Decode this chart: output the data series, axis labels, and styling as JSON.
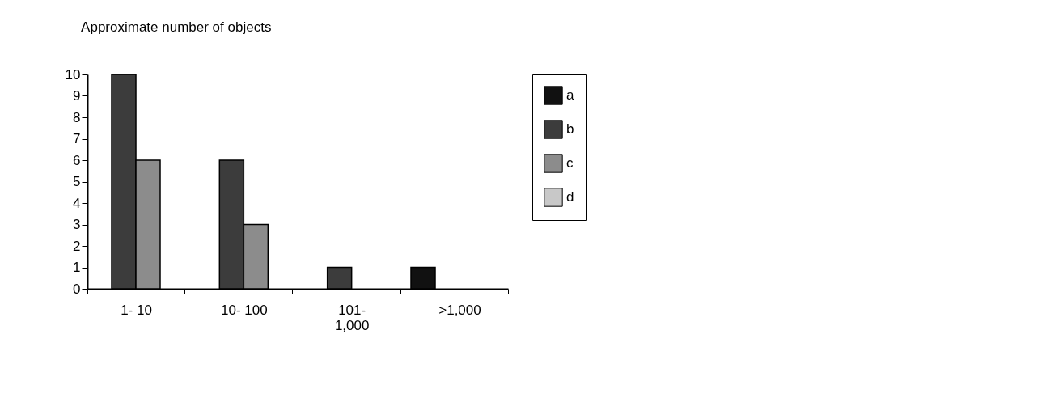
{
  "chart_data": {
    "type": "bar",
    "title": "Approximate number of objects",
    "categories": [
      "1-  10",
      "10-  100",
      "101-\n1,000",
      ">1,000"
    ],
    "series": [
      {
        "name": "a",
        "color": "#111111",
        "values": [
          0,
          0,
          0,
          1
        ]
      },
      {
        "name": "b",
        "color": "#3c3c3c",
        "values": [
          10,
          6,
          1,
          0
        ]
      },
      {
        "name": "c",
        "color": "#8c8c8c",
        "values": [
          6,
          3,
          0,
          0
        ]
      },
      {
        "name": "d",
        "color": "#c8c8c8",
        "values": [
          0,
          0,
          0,
          0
        ]
      }
    ],
    "ylim": [
      0,
      10
    ],
    "yticks": [
      0,
      1,
      2,
      3,
      4,
      5,
      6,
      7,
      8,
      9,
      10
    ],
    "grid": false,
    "legend": "right"
  }
}
